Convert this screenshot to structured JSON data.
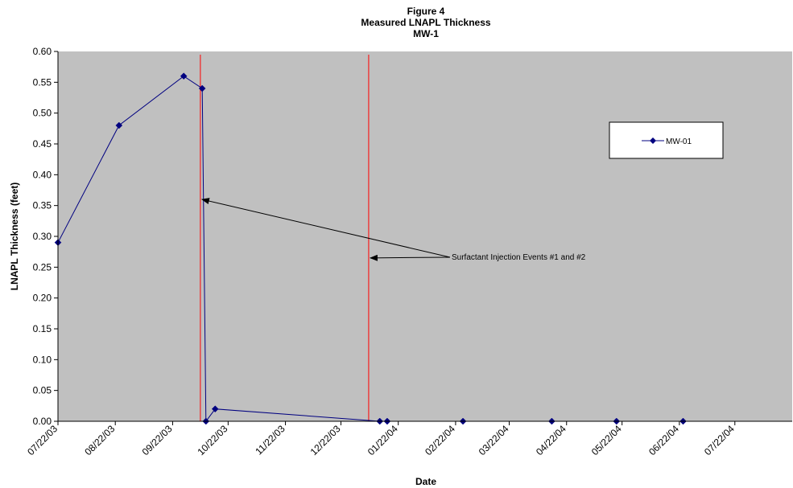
{
  "chart_data": {
    "type": "line",
    "title_lines": [
      "Figure 4",
      "Measured LNAPL Thickness",
      "MW-1"
    ],
    "xlabel": "Date",
    "ylabel": "LNAPL Thickness (feet)",
    "xlim": [
      "2003-07-22",
      "2004-08-22"
    ],
    "ylim": [
      0,
      0.6
    ],
    "y_step": 0.05,
    "y_tick_decimals": 2,
    "x_ticks": [
      "07/22/03",
      "08/22/03",
      "09/22/03",
      "10/22/03",
      "11/22/03",
      "12/22/03",
      "01/22/04",
      "02/22/04",
      "03/22/04",
      "04/22/04",
      "05/22/04",
      "06/22/04",
      "07/22/04"
    ],
    "x_tick_dates": [
      "2003-07-22",
      "2003-08-22",
      "2003-09-22",
      "2003-10-22",
      "2003-11-22",
      "2003-12-22",
      "2004-01-22",
      "2004-02-22",
      "2004-03-22",
      "2004-04-22",
      "2004-05-22",
      "2004-06-22",
      "2004-07-22"
    ],
    "grid": false,
    "plot_background": "#c0c0c0",
    "legend": {
      "position": "right",
      "entries": [
        "MW-01"
      ]
    },
    "series": [
      {
        "name": "MW-01",
        "color": "#000080",
        "marker": "diamond",
        "x": [
          "2003-07-22",
          "2003-08-24",
          "2003-09-28",
          "2003-10-08",
          "2003-10-10",
          "2003-10-15",
          "2004-01-12",
          "2004-01-16",
          "2004-02-26",
          "2004-04-14",
          "2004-05-19",
          "2004-06-24",
          "2004-08-22"
        ],
        "y": [
          0.29,
          0.48,
          0.56,
          0.54,
          0.0,
          0.02,
          0.0,
          0.0,
          0.0,
          0.0,
          0.0,
          0.0,
          0.0
        ],
        "show_marker": [
          true,
          true,
          true,
          true,
          true,
          true,
          true,
          true,
          true,
          true,
          true,
          true,
          false
        ]
      }
    ],
    "reference_lines": [
      {
        "x": "2003-10-07",
        "color": "#ff0000",
        "label": "Surfactant Injection Event #1"
      },
      {
        "x": "2004-01-06",
        "color": "#ff0000",
        "label": "Surfactant Injection Event #2"
      }
    ],
    "annotation": {
      "text": "Surfactant Injection Events #1 and #2",
      "arrow_targets": [
        {
          "x": "2003-10-07",
          "y": 0.36
        },
        {
          "x": "2004-01-06",
          "y": 0.265
        }
      ],
      "text_anchor": {
        "x": "2004-02-19",
        "y": 0.27
      }
    }
  }
}
